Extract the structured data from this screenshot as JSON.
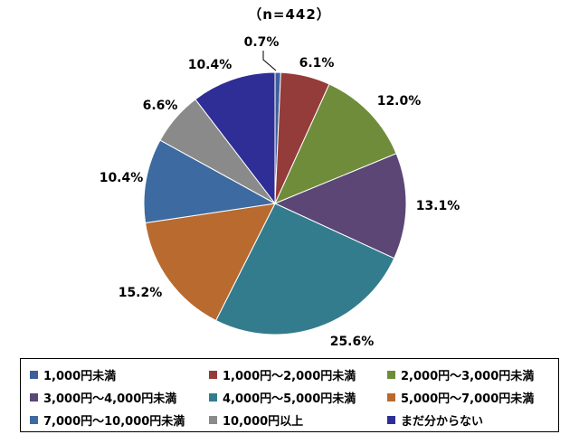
{
  "chart_data": {
    "type": "pie",
    "subtitle": "（n=442）",
    "slices": [
      {
        "label": "1,000円未満",
        "value": 0.7,
        "value_label": "0.7%",
        "color": "#3f5f9c"
      },
      {
        "label": "1,000円～2,000円未満",
        "value": 6.1,
        "value_label": "6.1%",
        "color": "#933c3a"
      },
      {
        "label": "2,000円～3,000円未満",
        "value": 12.0,
        "value_label": "12.0%",
        "color": "#6f8c3a"
      },
      {
        "label": "3,000円～4,000円未満",
        "value": 13.1,
        "value_label": "13.1%",
        "color": "#5b4675"
      },
      {
        "label": "4,000円～5,000円未満",
        "value": 25.6,
        "value_label": "25.6%",
        "color": "#337c8e"
      },
      {
        "label": "5,000円～7,000円未満",
        "value": 15.2,
        "value_label": "15.2%",
        "color": "#b86a2f"
      },
      {
        "label": "7,000円～10,000円未満",
        "value": 10.4,
        "value_label": "10.4%",
        "color": "#3d6aa0"
      },
      {
        "label": "10,000円以上",
        "value": 6.6,
        "value_label": "6.6%",
        "color": "#8a8a8a"
      },
      {
        "label": "まだ分からない",
        "value": 10.4,
        "value_label": "10.4%",
        "color": "#2e2e96"
      }
    ],
    "legend_position": "bottom"
  }
}
